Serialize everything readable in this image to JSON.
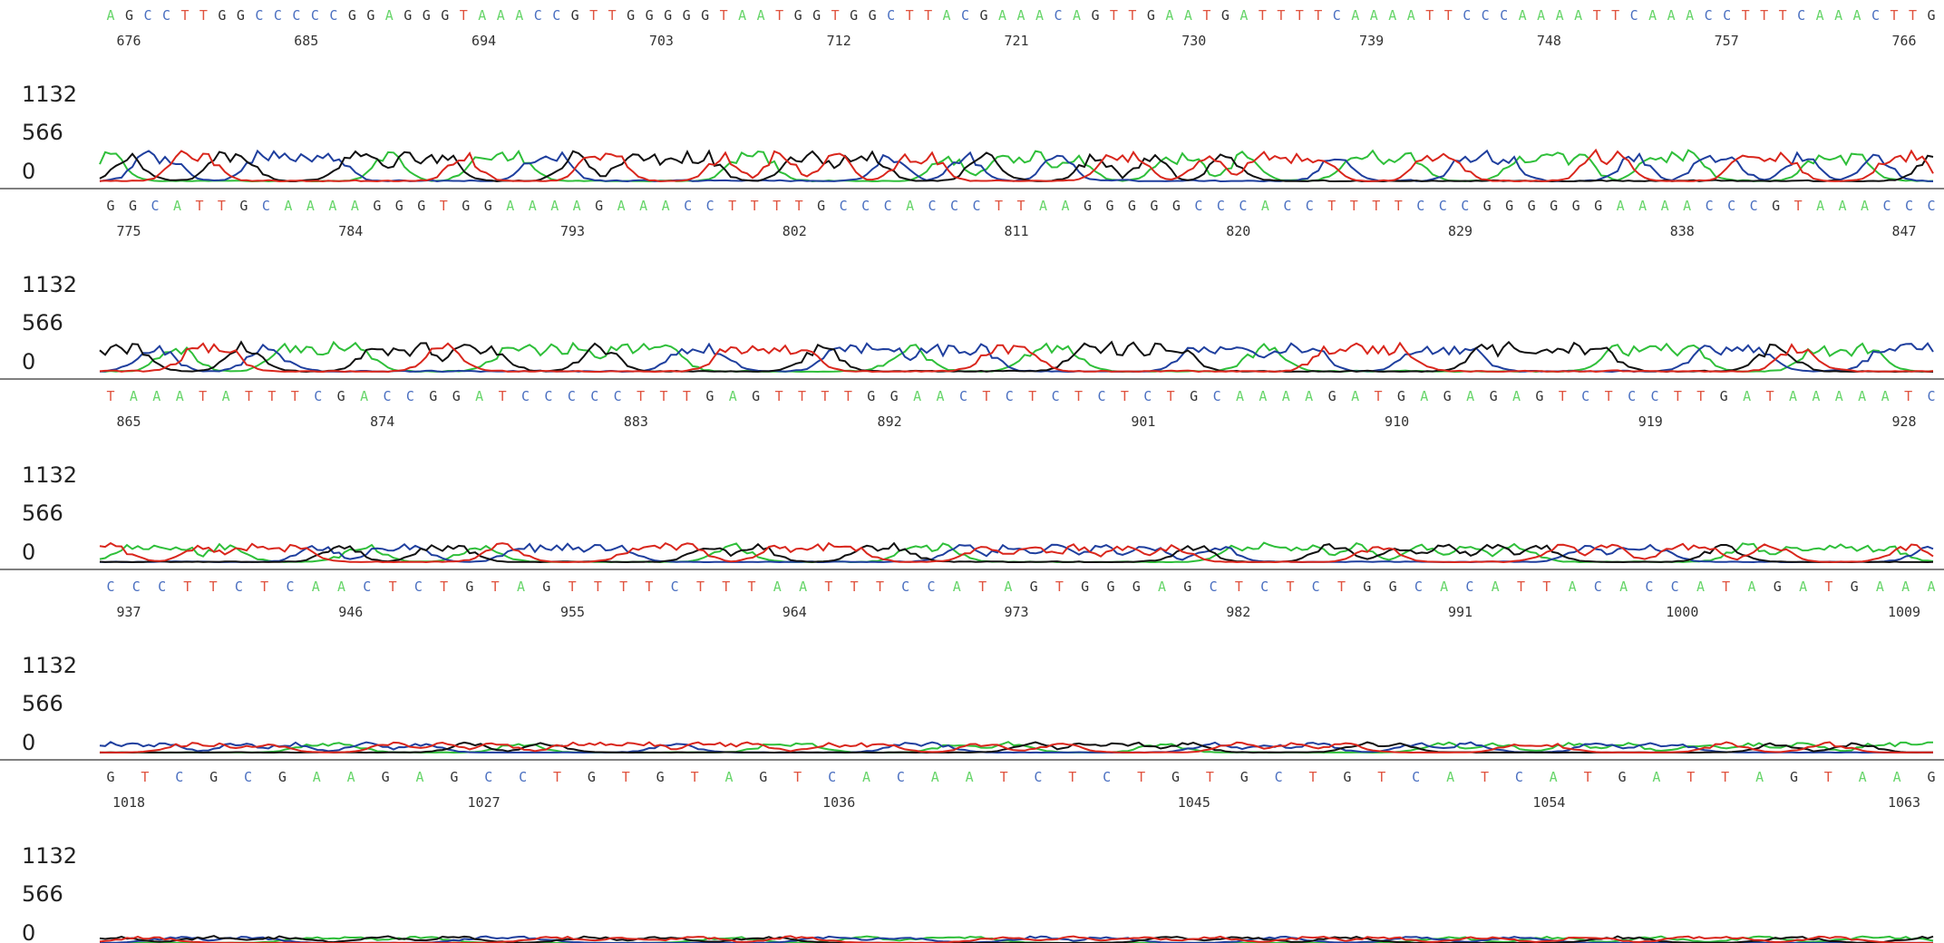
{
  "colors": {
    "A": "#67d56a",
    "C": "#4a6fc0",
    "G": "#333333",
    "T": "#e0533f",
    "trace_A": "#2fbf3a",
    "trace_C": "#1f3f9e",
    "trace_G": "#111111",
    "trace_T": "#d9261c",
    "divider": "#555555",
    "text": "#333333"
  },
  "chart_data": {
    "type": "line",
    "title": "",
    "xlabel": "",
    "ylabel": "",
    "ylim": [
      0,
      1132
    ],
    "y_ticks": [
      "1132",
      "566",
      "0"
    ],
    "legend": "none",
    "grid": false,
    "series_bases": [
      "A",
      "C",
      "G",
      "T"
    ],
    "panels": [
      {
        "sequence": "AGCCTTGGCCCCCGGAGGGTAAACCGTTGGGGGTAATGGTGGCTTACGAAACAGTTGAATGATTTTCAAAATTCCCAAAATTCAAACCTTTCAAACTTG",
        "positions": [
          676,
          685,
          694,
          703,
          712,
          721,
          730,
          739,
          748,
          757,
          766
        ],
        "signal_scale": 0.9
      },
      {
        "sequence": "GGCATTGCAAAAGGGTGGAAAAGAAACCTTTTGCCCACCCTTAAGGGGGCCCACCTTTTCCCGGGGGGAAAACCCGTAAACCC",
        "positions": [
          775,
          784,
          793,
          802,
          811,
          820,
          829,
          838,
          847
        ],
        "signal_scale": 0.85
      },
      {
        "sequence": "TAAATATTTCGACCGGATCCCCCTTTGAGTTTTGGAACTCTCTCTCTGCAAAAGATGAGAGAGTCTCCTTGATAAAAATC",
        "positions": [
          865,
          874,
          883,
          892,
          901,
          910,
          919,
          928
        ],
        "signal_scale": 0.55
      },
      {
        "sequence": "CCCTTCTCAACTCTGTAGTTTTCTTTAATTTCCATAGTGGGAGCTCTCTGGCACATTACACCATAGATGAAA",
        "positions": [
          937,
          946,
          955,
          964,
          973,
          982,
          991,
          1000,
          1009
        ],
        "signal_scale": 0.3
      },
      {
        "sequence": "GTCGCGAAGAGCCTGTGTAGTCACAATCTCTGTGCTGTCATCATGATTAGTAAG",
        "positions": [
          1018,
          1027,
          1036,
          1045,
          1054,
          1063
        ],
        "signal_scale": 0.2
      }
    ]
  }
}
